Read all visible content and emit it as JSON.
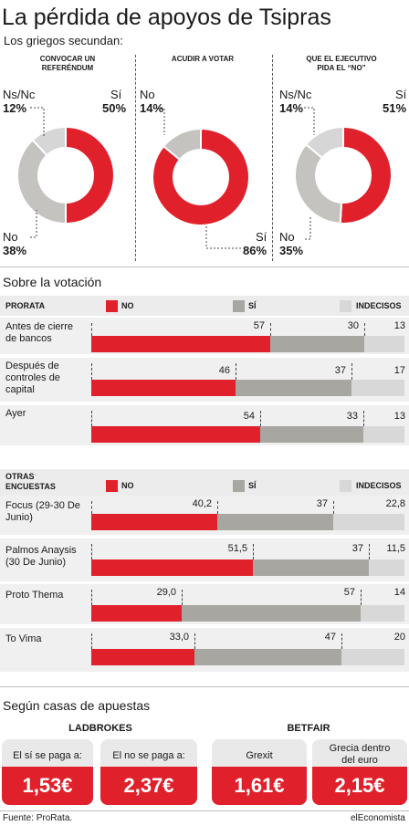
{
  "header": {
    "title": "La pérdida de apoyos de Tsipras",
    "subtitle": "Los griegos secundan:"
  },
  "colors": {
    "no": "#e0212b",
    "si": "#a8a6a1",
    "indecisos": "#d8d8d8",
    "red": "#e0212b"
  },
  "pies": [
    {
      "title_lines": [
        "CONVOCAR UN",
        "REFERÉNDUM"
      ],
      "slices": [
        {
          "label": "Sí",
          "pct": "50%",
          "value": 50,
          "color": "#e0212b"
        },
        {
          "label": "No",
          "pct": "38%",
          "value": 38,
          "color": "#c4c3c0"
        },
        {
          "label": "Ns/Nc",
          "pct": "12%",
          "value": 12,
          "color": "#d6d6d6"
        }
      ]
    },
    {
      "title_lines": [
        "ACUDIR A VOTAR"
      ],
      "slices": [
        {
          "label": "Sí",
          "pct": "86%",
          "value": 86,
          "color": "#e0212b"
        },
        {
          "label": "No",
          "pct": "14%",
          "value": 14,
          "color": "#c4c3c0"
        }
      ]
    },
    {
      "title_lines": [
        "QUE EL EJECUTIVO",
        "PIDA EL “NO”"
      ],
      "slices": [
        {
          "label": "Sí",
          "pct": "51%",
          "value": 51,
          "color": "#e0212b"
        },
        {
          "label": "No",
          "pct": "35%",
          "value": 35,
          "color": "#c4c3c0"
        },
        {
          "label": "Ns/Nc",
          "pct": "14%",
          "value": 14,
          "color": "#d6d6d6"
        }
      ]
    }
  ],
  "votacion": {
    "title": "Sobre la votación",
    "legend": {
      "no": "NO",
      "si": "SÍ",
      "indecisos": "INDECISOS"
    },
    "prorata": {
      "header": "PRORATA",
      "rows": [
        {
          "label": "Antes de cierre de bancos",
          "no": "57",
          "si": "30",
          "ind": "13",
          "v": [
            57,
            30,
            13
          ]
        },
        {
          "label": "Después de controles de capital",
          "no": "46",
          "si": "37",
          "ind": "17",
          "v": [
            46,
            37,
            17
          ]
        },
        {
          "label": "Ayer",
          "no": "54",
          "si": "33",
          "ind": "13",
          "v": [
            54,
            33,
            13
          ]
        }
      ]
    },
    "otras": {
      "header": "OTRAS ENCUESTAS",
      "rows": [
        {
          "label": "Focus (29-30 De Junio)",
          "no": "40,2",
          "si": "37",
          "ind": "22,8",
          "v": [
            40.2,
            37,
            22.8
          ]
        },
        {
          "label": "Palmos Anaysis (30 De Junio)",
          "no": "51,5",
          "si": "37",
          "ind": "11,5",
          "v": [
            51.5,
            37,
            11.5
          ]
        },
        {
          "label": "Proto Thema",
          "no": "29,0",
          "si": "57",
          "ind": "14",
          "v": [
            29,
            57,
            14
          ]
        },
        {
          "label": "To Vima",
          "no": "33,0",
          "si": "47",
          "ind": "20",
          "v": [
            33,
            47,
            20
          ]
        }
      ]
    }
  },
  "apuestas": {
    "title": "Según casas de apuestas",
    "groups": [
      {
        "name": "LADBROKES",
        "cards": [
          {
            "label": "El sí se paga a:",
            "value": "1,53€"
          },
          {
            "label": "El no se paga a:",
            "value": "2,37€"
          }
        ]
      },
      {
        "name": "BETFAIR",
        "cards": [
          {
            "label": "Grexit",
            "value": "1,61€"
          },
          {
            "label": "Grecia dentro del euro",
            "value": "2,15€"
          }
        ]
      }
    ]
  },
  "footer": {
    "source": "Fuente: ProRata.",
    "brand": "elEconomista"
  },
  "chart_data": [
    {
      "type": "pie",
      "title": "CONVOCAR UN REFERÉNDUM",
      "labels": [
        "Sí",
        "No",
        "Ns/Nc"
      ],
      "values": [
        50,
        38,
        12
      ]
    },
    {
      "type": "pie",
      "title": "ACUDIR A VOTAR",
      "labels": [
        "Sí",
        "No"
      ],
      "values": [
        86,
        14
      ]
    },
    {
      "type": "pie",
      "title": "QUE EL EJECUTIVO PIDA EL “NO”",
      "labels": [
        "Sí",
        "No",
        "Ns/Nc"
      ],
      "values": [
        51,
        35,
        14
      ]
    },
    {
      "type": "bar",
      "title": "PRORATA",
      "stacked": true,
      "orientation": "horizontal",
      "categories": [
        "Antes de cierre de bancos",
        "Después de controles de capital",
        "Ayer"
      ],
      "series": [
        {
          "name": "NO",
          "values": [
            57,
            46,
            54
          ]
        },
        {
          "name": "SÍ",
          "values": [
            30,
            37,
            33
          ]
        },
        {
          "name": "INDECISOS",
          "values": [
            13,
            17,
            13
          ]
        }
      ]
    },
    {
      "type": "bar",
      "title": "OTRAS ENCUESTAS",
      "stacked": true,
      "orientation": "horizontal",
      "categories": [
        "Focus (29-30 De Junio)",
        "Palmos Anaysis (30 De Junio)",
        "Proto Thema",
        "To Vima"
      ],
      "series": [
        {
          "name": "NO",
          "values": [
            40.2,
            51.5,
            29.0,
            33.0
          ]
        },
        {
          "name": "SÍ",
          "values": [
            37,
            37,
            57,
            47
          ]
        },
        {
          "name": "INDECISOS",
          "values": [
            22.8,
            11.5,
            14,
            20
          ]
        }
      ]
    }
  ]
}
